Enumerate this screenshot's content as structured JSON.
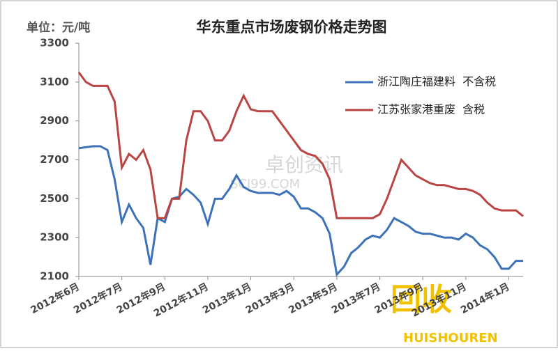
{
  "chart_data": {
    "type": "line",
    "title": "华东重点市场废钢价格走势图",
    "unit_label": "单位：元/吨",
    "watermarks": [
      "卓创资讯",
      "SCI99.COM",
      "回收",
      "HUISHOUREN"
    ],
    "categories": [
      "2012年6月",
      null,
      null,
      null,
      null,
      null,
      "2012年7月",
      null,
      null,
      null,
      null,
      null,
      "2012年9月",
      null,
      null,
      null,
      null,
      null,
      "2012年11月",
      null,
      null,
      null,
      null,
      null,
      "2013年1月",
      null,
      null,
      null,
      null,
      null,
      "2013年3月",
      null,
      null,
      null,
      null,
      null,
      "2013年5月",
      null,
      null,
      null,
      null,
      null,
      "2013年7月",
      null,
      null,
      null,
      null,
      null,
      "2013年9月",
      null,
      null,
      null,
      null,
      null,
      "2013年11月",
      null,
      null,
      null,
      null,
      null,
      "2014年1月",
      null,
      null
    ],
    "series": [
      {
        "name": "浙江陶庄福建料  不含税",
        "color": "#3d72b8",
        "values": [
          2760,
          2765,
          2770,
          2770,
          2750,
          2600,
          2380,
          2470,
          2400,
          2350,
          2160,
          2400,
          2380,
          2500,
          2510,
          2550,
          2520,
          2480,
          2370,
          2500,
          2500,
          2550,
          2620,
          2560,
          2540,
          2530,
          2530,
          2530,
          2520,
          2540,
          2510,
          2450,
          2450,
          2430,
          2400,
          2320,
          2110,
          2150,
          2220,
          2250,
          2290,
          2310,
          2300,
          2340,
          2400,
          2380,
          2360,
          2330,
          2320,
          2320,
          2310,
          2300,
          2300,
          2290,
          2320,
          2300,
          2260,
          2240,
          2200,
          2140,
          2140,
          2180,
          2180
        ]
      },
      {
        "name": "江苏张家港重废  含税",
        "color": "#b94442",
        "values": [
          3150,
          3100,
          3080,
          3080,
          3080,
          3000,
          2660,
          2730,
          2700,
          2750,
          2650,
          2400,
          2400,
          2500,
          2500,
          2800,
          2950,
          2950,
          2900,
          2800,
          2800,
          2850,
          2950,
          3030,
          2960,
          2950,
          2950,
          2950,
          2900,
          2850,
          2800,
          2750,
          2730,
          2720,
          2680,
          2600,
          2400,
          2400,
          2400,
          2400,
          2400,
          2400,
          2420,
          2500,
          2600,
          2700,
          2660,
          2620,
          2600,
          2580,
          2570,
          2570,
          2560,
          2550,
          2550,
          2540,
          2520,
          2480,
          2450,
          2440,
          2440,
          2440,
          2410
        ]
      }
    ],
    "ylim": [
      2100,
      3300
    ],
    "yticks": [
      2100,
      2300,
      2500,
      2700,
      2900,
      3100,
      3300
    ],
    "legend": "top-right",
    "grid": false
  }
}
